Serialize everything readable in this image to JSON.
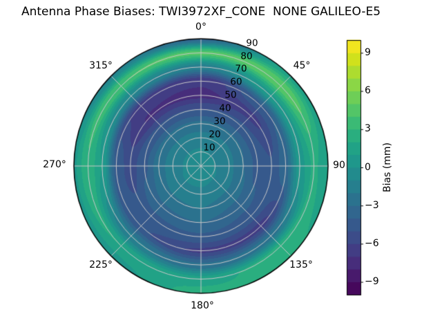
{
  "title": "Antenna Phase Biases: TWI3972XF_CONE  NONE GALILEO-E5",
  "polar_axis": {
    "azimuth_labels": [
      "0°",
      "45°",
      "90",
      "135°",
      "180°",
      "225°",
      "270°",
      "315°"
    ],
    "radial_labels": [
      "10",
      "20",
      "30",
      "40",
      "50",
      "60",
      "70",
      "80",
      "90"
    ]
  },
  "colorbar": {
    "label": "Bias (mm)",
    "tick_labels": [
      "9",
      "6",
      "3",
      "0",
      "−3",
      "−6",
      "−9"
    ]
  },
  "chart_data": {
    "type": "heatmap",
    "projection": "polar",
    "title": "Antenna Phase Biases: TWI3972XF_CONE  NONE GALILEO-E5",
    "value_label": "Bias (mm)",
    "units": "mm",
    "colormap": "viridis",
    "level_min": -10,
    "level_max": 10,
    "level_step": 1,
    "theta_zero": "north",
    "theta_direction": "clockwise",
    "azimuth_deg": [
      0,
      45,
      90,
      135,
      180,
      225,
      270,
      315
    ],
    "zenith_deg": [
      0,
      10,
      20,
      30,
      40,
      50,
      60,
      70,
      80,
      90
    ],
    "bias_mm": [
      [
        -0.8,
        -0.8,
        -0.8,
        -0.8,
        -0.8,
        -0.8,
        -0.8,
        -0.8
      ],
      [
        -0.9,
        -1.0,
        -1.0,
        -0.9,
        -0.8,
        -0.8,
        -0.9,
        -0.9
      ],
      [
        -1.5,
        -1.6,
        -1.7,
        -1.5,
        -1.2,
        -1.2,
        -1.4,
        -1.5
      ],
      [
        -2.8,
        -2.9,
        -3.0,
        -2.5,
        -2.0,
        -2.1,
        -2.5,
        -2.8
      ],
      [
        -5.0,
        -4.8,
        -4.3,
        -3.6,
        -3.0,
        -3.2,
        -4.2,
        -4.9
      ],
      [
        -7.3,
        -6.3,
        -4.9,
        -4.5,
        -4.2,
        -4.4,
        -5.6,
        -7.1
      ],
      [
        -6.8,
        -4.2,
        -3.3,
        -6.3,
        -6.2,
        -4.9,
        -4.2,
        -6.4
      ],
      [
        -1.5,
        0.8,
        0.6,
        -2.4,
        -2.8,
        -1.8,
        1.0,
        -0.9
      ],
      [
        4.4,
        4.9,
        2.2,
        2.6,
        1.6,
        2.0,
        2.9,
        4.0
      ],
      [
        -3.5,
        1.5,
        1.2,
        2.2,
        2.4,
        0.5,
        0.8,
        -1.2
      ]
    ],
    "colorbar_ticks": [
      9,
      6,
      3,
      0,
      -3,
      -6,
      -9
    ],
    "palette": [
      "#46085C",
      "#481A6C",
      "#472D7B",
      "#423D84",
      "#3C4C89",
      "#36598C",
      "#31668E",
      "#2B728E",
      "#267F8E",
      "#228B8D",
      "#1F978B",
      "#21A286",
      "#2AAE7F",
      "#3BBA75",
      "#53C567",
      "#6ECE57",
      "#8BD646",
      "#ADDC2F",
      "#D0E11C",
      "#F0E51F"
    ],
    "grid_color": "#c9c9c9",
    "outline_color": "#000000",
    "legend_position": "right-colorbar",
    "grid": true
  }
}
